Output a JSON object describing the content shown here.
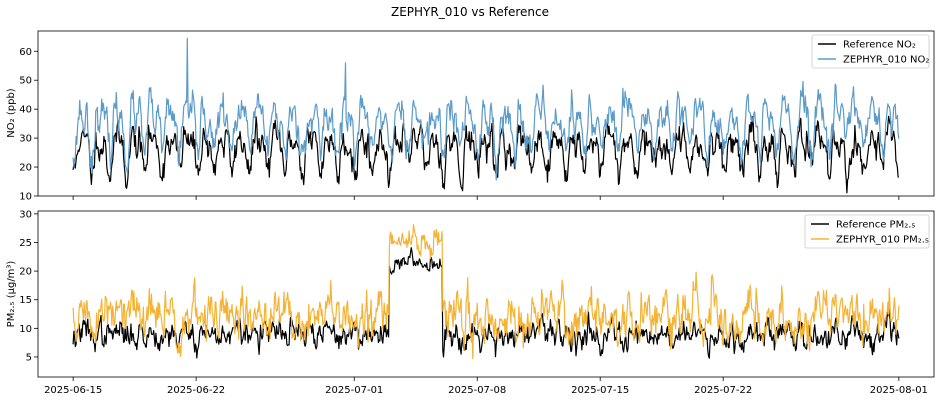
{
  "chart_data": {
    "title": "ZEPHYR_010 vs Reference",
    "x_start": "2025-06-15",
    "x_end": "2025-08-01",
    "x_ticks": [
      "2025-06-15",
      "2025-06-22",
      "2025-07-01",
      "2025-07-08",
      "2025-07-15",
      "2025-07-22",
      "2025-08-01"
    ],
    "x_range": [
      "2025-06-13",
      "2025-08-03"
    ],
    "panels": [
      {
        "type": "line",
        "ylabel": "NO₂ (ppb)",
        "ylim": [
          10,
          67
        ],
        "y_ticks": [
          10,
          20,
          30,
          40,
          50,
          60
        ],
        "legend_position": "top-right",
        "series": [
          {
            "name": "Reference NO₂",
            "color": "#000000",
            "mean": 26,
            "amplitude": 5,
            "noise": 3,
            "seed": 11
          },
          {
            "name": "ZEPHYR_010 NO₂",
            "color": "#5b9bc9",
            "mean": 34,
            "amplitude": 6,
            "noise": 3.5,
            "seed": 23,
            "spikes": [
              {
                "date": "2025-06-21",
                "value": 64.5
              },
              {
                "date": "2025-06-30",
                "value": 56
              }
            ]
          }
        ]
      },
      {
        "type": "line",
        "ylabel": "PM₂.₅ (μg/m³)",
        "ylim": [
          1.5,
          30.5
        ],
        "y_ticks": [
          5,
          10,
          15,
          20,
          25,
          30
        ],
        "legend_position": "top-right",
        "series": [
          {
            "name": "Reference PM₂.₅",
            "color": "#000000",
            "mean": 9,
            "amplitude": 0.5,
            "noise": 1.3,
            "seed": 37,
            "episode": {
              "start": "2025-07-03",
              "end": "2025-07-06",
              "mean": 21.5
            }
          },
          {
            "name": "ZEPHYR_010 PM₂.₅",
            "color": "#f5b335",
            "mean": 12,
            "amplitude": 0.8,
            "noise": 2.4,
            "seed": 51,
            "episode": {
              "start": "2025-07-03",
              "end": "2025-07-06",
              "mean": 25
            }
          }
        ]
      }
    ]
  }
}
